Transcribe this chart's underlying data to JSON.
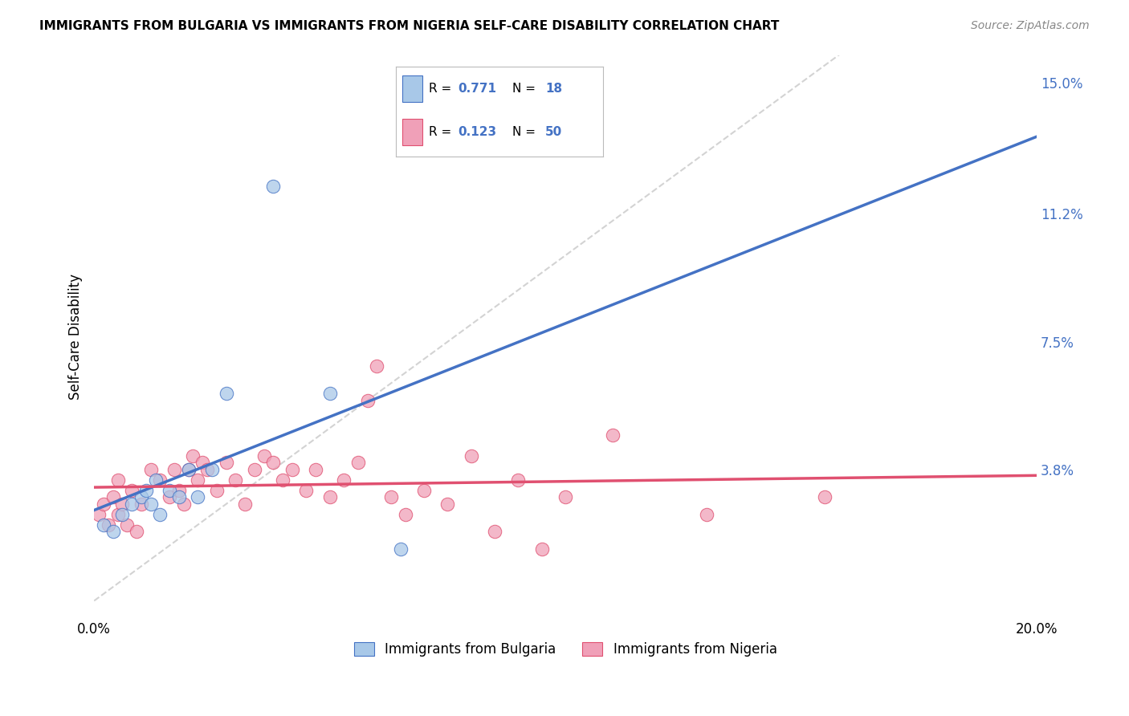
{
  "title": "IMMIGRANTS FROM BULGARIA VS IMMIGRANTS FROM NIGERIA SELF-CARE DISABILITY CORRELATION CHART",
  "source": "Source: ZipAtlas.com",
  "ylabel": "Self-Care Disability",
  "x_min": 0.0,
  "x_max": 0.2,
  "y_min": -0.005,
  "y_max": 0.158,
  "y_ticks": [
    0.0,
    0.038,
    0.075,
    0.112,
    0.15
  ],
  "y_tick_labels": [
    "",
    "3.8%",
    "7.5%",
    "11.2%",
    "15.0%"
  ],
  "x_ticks": [
    0.0,
    0.05,
    0.1,
    0.15,
    0.2
  ],
  "x_tick_labels": [
    "0.0%",
    "",
    "",
    "",
    "20.0%"
  ],
  "legend_r1": "0.771",
  "legend_n1": "18",
  "legend_r2": "0.123",
  "legend_n2": "50",
  "color_bulgaria": "#A8C8E8",
  "color_nigeria": "#F0A0B8",
  "color_regression_bulgaria": "#4472C4",
  "color_regression_nigeria": "#E05070",
  "color_diagonal": "#C8C8C8",
  "bulgaria_x": [
    0.002,
    0.004,
    0.006,
    0.008,
    0.01,
    0.011,
    0.012,
    0.013,
    0.014,
    0.016,
    0.018,
    0.02,
    0.022,
    0.025,
    0.028,
    0.038,
    0.05,
    0.065
  ],
  "bulgaria_y": [
    0.022,
    0.02,
    0.025,
    0.028,
    0.03,
    0.032,
    0.028,
    0.035,
    0.025,
    0.032,
    0.03,
    0.038,
    0.03,
    0.038,
    0.06,
    0.12,
    0.06,
    0.015
  ],
  "nigeria_x": [
    0.001,
    0.002,
    0.003,
    0.004,
    0.005,
    0.005,
    0.006,
    0.007,
    0.008,
    0.009,
    0.01,
    0.012,
    0.014,
    0.016,
    0.017,
    0.018,
    0.019,
    0.02,
    0.021,
    0.022,
    0.023,
    0.024,
    0.026,
    0.028,
    0.03,
    0.032,
    0.034,
    0.036,
    0.038,
    0.04,
    0.042,
    0.045,
    0.047,
    0.05,
    0.053,
    0.056,
    0.058,
    0.06,
    0.063,
    0.066,
    0.07,
    0.075,
    0.08,
    0.085,
    0.09,
    0.095,
    0.1,
    0.11,
    0.13,
    0.155
  ],
  "nigeria_y": [
    0.025,
    0.028,
    0.022,
    0.03,
    0.025,
    0.035,
    0.028,
    0.022,
    0.032,
    0.02,
    0.028,
    0.038,
    0.035,
    0.03,
    0.038,
    0.032,
    0.028,
    0.038,
    0.042,
    0.035,
    0.04,
    0.038,
    0.032,
    0.04,
    0.035,
    0.028,
    0.038,
    0.042,
    0.04,
    0.035,
    0.038,
    0.032,
    0.038,
    0.03,
    0.035,
    0.04,
    0.058,
    0.068,
    0.03,
    0.025,
    0.032,
    0.028,
    0.042,
    0.02,
    0.035,
    0.015,
    0.03,
    0.048,
    0.025,
    0.03
  ],
  "background_color": "#FFFFFF",
  "grid_color": "#DDDDDD"
}
